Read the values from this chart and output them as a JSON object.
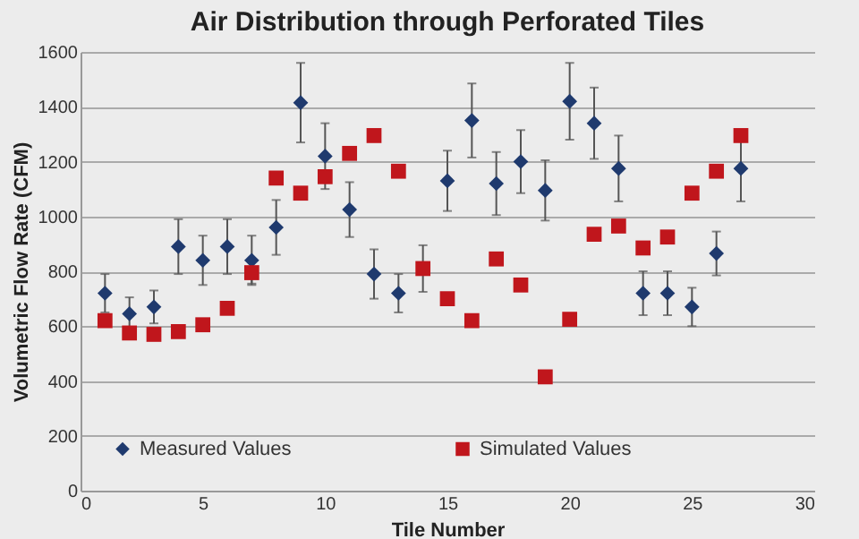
{
  "chart_data": {
    "type": "scatter",
    "title": "Air Distribution through Perforated Tiles",
    "xlabel": "Tile Number",
    "ylabel": "Volumetric Flow Rate (CFM)",
    "xlim": [
      0,
      30
    ],
    "xticks": [
      0,
      5,
      10,
      15,
      20,
      25,
      30
    ],
    "ylim": [
      0,
      1600
    ],
    "yticks": [
      0,
      200,
      400,
      600,
      800,
      1000,
      1200,
      1400,
      1600
    ],
    "grid": "y",
    "legend": "bottom",
    "series": [
      {
        "name": "Measured Values",
        "color": "#1f3a6e",
        "marker": "diamond",
        "x": [
          1,
          2,
          3,
          4,
          5,
          6,
          7,
          8,
          9,
          10,
          11,
          12,
          13,
          15,
          16,
          17,
          18,
          19,
          20,
          21,
          22,
          23,
          24,
          25,
          26,
          27
        ],
        "values": [
          720,
          645,
          670,
          890,
          840,
          890,
          840,
          960,
          1415,
          1220,
          1025,
          790,
          720,
          1130,
          1350,
          1120,
          1200,
          1095,
          1420,
          1340,
          1175,
          720,
          720,
          670,
          865,
          1175
        ],
        "errors": [
          70,
          60,
          60,
          100,
          90,
          100,
          90,
          100,
          145,
          120,
          100,
          90,
          70,
          110,
          135,
          115,
          115,
          110,
          140,
          130,
          120,
          80,
          80,
          70,
          80,
          120
        ]
      },
      {
        "name": "Simulated Values",
        "color": "#c0161c",
        "marker": "square",
        "x": [
          1,
          2,
          3,
          4,
          5,
          6,
          7,
          8,
          9,
          10,
          11,
          12,
          13,
          14,
          15,
          16,
          17,
          18,
          19,
          20,
          21,
          22,
          23,
          24,
          25,
          26,
          27
        ],
        "values": [
          620,
          575,
          570,
          580,
          605,
          665,
          795,
          1140,
          1085,
          1145,
          1230,
          1295,
          1165,
          810,
          700,
          620,
          845,
          750,
          415,
          625,
          935,
          965,
          885,
          925,
          1085,
          1165,
          1295
        ],
        "errors": [
          null,
          null,
          null,
          null,
          null,
          null,
          40,
          null,
          null,
          null,
          null,
          null,
          null,
          85,
          null,
          null,
          null,
          null,
          null,
          null,
          null,
          null,
          null,
          null,
          null,
          null,
          null
        ]
      }
    ]
  }
}
